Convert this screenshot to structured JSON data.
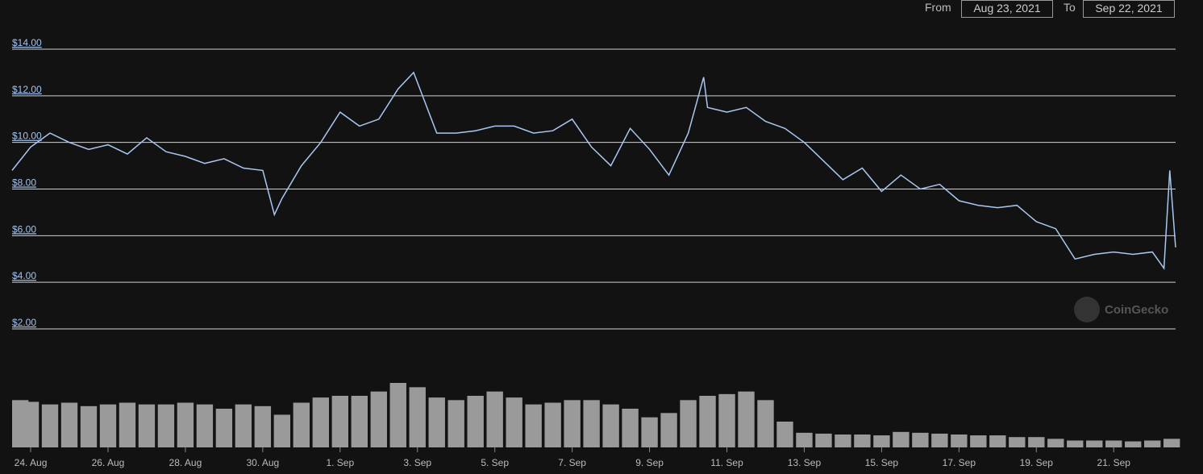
{
  "range": {
    "from_label": "From",
    "from": "Aug 23, 2021",
    "to_label": "To",
    "to": "Sep 22, 2021"
  },
  "watermark": "CoinGecko",
  "chart_data": [
    {
      "type": "line",
      "color": "#a9c7f0",
      "grid": true,
      "ylim": [
        2,
        14
      ],
      "yticks": [
        {
          "value": 2,
          "label": "$2.00"
        },
        {
          "value": 4,
          "label": "$4.00"
        },
        {
          "value": 6,
          "label": "$6.00"
        },
        {
          "value": 8,
          "label": "$8.00"
        },
        {
          "value": 10,
          "label": "$10.00"
        },
        {
          "value": 12,
          "label": "$12.00"
        },
        {
          "value": 14,
          "label": "$14.00"
        }
      ],
      "xlim": [
        0.52,
        30.6
      ],
      "xticks": [
        {
          "value": 1,
          "label": "24. Aug"
        },
        {
          "value": 3,
          "label": "26. Aug"
        },
        {
          "value": 5,
          "label": "28. Aug"
        },
        {
          "value": 7,
          "label": "30. Aug"
        },
        {
          "value": 9,
          "label": "1. Sep"
        },
        {
          "value": 11,
          "label": "3. Sep"
        },
        {
          "value": 13,
          "label": "5. Sep"
        },
        {
          "value": 15,
          "label": "7. Sep"
        },
        {
          "value": 17,
          "label": "9. Sep"
        },
        {
          "value": 19,
          "label": "11. Sep"
        },
        {
          "value": 21,
          "label": "13. Sep"
        },
        {
          "value": 23,
          "label": "15. Sep"
        },
        {
          "value": 25,
          "label": "17. Sep"
        },
        {
          "value": 27,
          "label": "19. Sep"
        },
        {
          "value": 29,
          "label": "21. Sep"
        }
      ],
      "x": [
        0.52,
        1,
        1.5,
        2,
        2.5,
        3,
        3.5,
        4,
        4.5,
        5,
        5.5,
        6,
        6.5,
        7,
        7.3,
        7.5,
        8,
        8.5,
        9,
        9.5,
        10,
        10.5,
        10.9,
        11.5,
        12,
        12.5,
        13,
        13.5,
        14,
        14.5,
        15,
        15.5,
        16,
        16.5,
        17,
        17.5,
        18,
        18.4,
        18.5,
        19,
        19.5,
        20,
        20.5,
        21,
        21.5,
        22,
        22.5,
        23,
        23.5,
        24,
        24.5,
        25,
        25.5,
        26,
        26.5,
        27,
        27.5,
        28,
        28.5,
        29,
        29.5,
        30,
        30.3,
        30.45,
        30.6
      ],
      "values": [
        8.8,
        9.8,
        10.4,
        10.0,
        9.7,
        9.9,
        9.5,
        10.2,
        9.6,
        9.4,
        9.1,
        9.3,
        8.9,
        8.8,
        6.9,
        7.6,
        9.0,
        10.0,
        11.3,
        10.7,
        11.0,
        12.3,
        13.0,
        10.4,
        10.4,
        10.5,
        10.7,
        10.7,
        10.4,
        10.5,
        11.0,
        9.8,
        9.0,
        10.6,
        9.7,
        8.6,
        10.4,
        12.8,
        11.5,
        11.3,
        11.5,
        10.9,
        10.6,
        10.0,
        9.2,
        8.4,
        8.9,
        7.9,
        8.6,
        8.0,
        8.2,
        7.5,
        7.3,
        7.2,
        7.3,
        6.6,
        6.3,
        5.0,
        5.2,
        5.3,
        5.2,
        5.3,
        4.6,
        8.8,
        5.5
      ]
    },
    {
      "type": "bar",
      "color": "#9a9a9a",
      "x": [
        0.52,
        1,
        1.5,
        2,
        2.5,
        3,
        3.5,
        4,
        4.5,
        5,
        5.5,
        6,
        6.5,
        7,
        7.5,
        8,
        8.5,
        9,
        9.5,
        10,
        10.5,
        11,
        11.5,
        12,
        12.5,
        13,
        13.5,
        14,
        14.5,
        15,
        15.5,
        16,
        16.5,
        17,
        17.5,
        18,
        18.5,
        19,
        19.5,
        20,
        20.5,
        21,
        21.5,
        22,
        22.5,
        23,
        23.5,
        24,
        24.5,
        25,
        25.5,
        26,
        26.5,
        27,
        27.5,
        28,
        28.5,
        29,
        29.5,
        30,
        30.5
      ],
      "values": [
        55,
        53,
        50,
        52,
        48,
        50,
        52,
        50,
        50,
        52,
        50,
        45,
        50,
        48,
        38,
        52,
        58,
        60,
        60,
        65,
        75,
        70,
        58,
        55,
        60,
        65,
        58,
        50,
        52,
        55,
        55,
        50,
        45,
        35,
        40,
        55,
        60,
        62,
        65,
        55,
        30,
        17,
        16,
        15,
        15,
        14,
        18,
        17,
        16,
        15,
        14,
        14,
        12,
        12,
        10,
        8,
        8,
        8,
        7,
        8,
        10
      ]
    }
  ]
}
